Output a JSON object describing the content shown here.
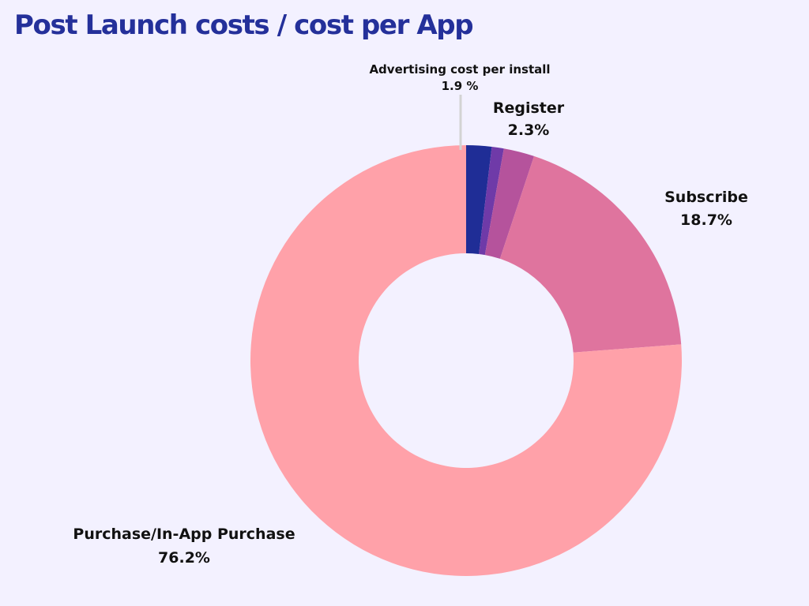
{
  "chart_data": {
    "type": "pie",
    "title": "Post Launch costs / cost per App",
    "donut": true,
    "slices": [
      {
        "label": "Advertising cost per install",
        "value_label": "1.9 %",
        "value": 1.9,
        "color": "#1f2d96"
      },
      {
        "label": "",
        "value_label": "",
        "value": 0.9,
        "color": "#6f3aa8"
      },
      {
        "label": "Register",
        "value_label": "2.3%",
        "value": 2.3,
        "color": "#b5539c"
      },
      {
        "label": "Subscribe",
        "value_label": "18.7%",
        "value": 18.7,
        "color": "#df749e"
      },
      {
        "label": "Purchase/In-App Purchase",
        "value_label": "76.2%",
        "value": 76.2,
        "color": "#ffa1a9"
      }
    ]
  }
}
